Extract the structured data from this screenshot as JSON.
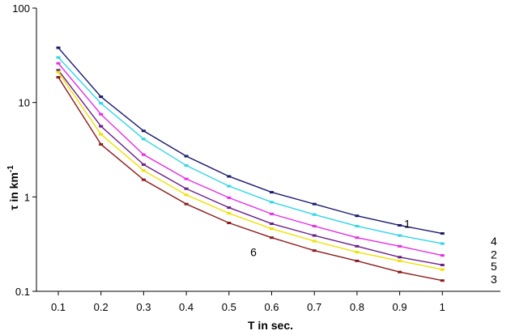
{
  "chart_data": {
    "type": "line",
    "title": "",
    "xlabel": "T in sec.",
    "ylabel_main": "τ in km",
    "ylabel_exp": "-1",
    "yscale": "log",
    "ylim": [
      0.1,
      100
    ],
    "xlim": [
      0.1,
      1.0
    ],
    "x_ticks": [
      "0.1",
      "0.2",
      "0.3",
      "0.4",
      "0.5",
      "0.6",
      "0.7",
      "0.8",
      "0.9",
      "1"
    ],
    "y_ticks": [
      "0.1",
      "1",
      "10",
      "100"
    ],
    "x": [
      0.1,
      0.2,
      0.3,
      0.4,
      0.5,
      0.6,
      0.7,
      0.8,
      0.9,
      1.0
    ],
    "grid": false,
    "legend": "none",
    "series": [
      {
        "name": "1",
        "color": "#1a1a6e",
        "values": [
          38,
          11.5,
          5.0,
          2.7,
          1.65,
          1.12,
          0.84,
          0.63,
          0.5,
          0.41
        ]
      },
      {
        "name": "4",
        "color": "#2ed6e6",
        "values": [
          30,
          9.8,
          4.1,
          2.15,
          1.3,
          0.88,
          0.65,
          0.49,
          0.39,
          0.32
        ]
      },
      {
        "name": "2",
        "color": "#e62ee6",
        "values": [
          26,
          7.5,
          2.8,
          1.55,
          0.98,
          0.66,
          0.49,
          0.37,
          0.3,
          0.24
        ]
      },
      {
        "name": "5",
        "color": "#6a1f8a",
        "values": [
          22,
          5.6,
          2.2,
          1.22,
          0.77,
          0.52,
          0.39,
          0.3,
          0.23,
          0.19
        ]
      },
      {
        "name": "",
        "color": "#f0e000",
        "values": [
          21,
          4.6,
          1.9,
          1.05,
          0.67,
          0.46,
          0.34,
          0.26,
          0.21,
          0.17
        ]
      },
      {
        "name": "3",
        "color": "#8b1a1a",
        "values": [
          18.5,
          3.6,
          1.52,
          0.84,
          0.53,
          0.37,
          0.27,
          0.21,
          0.16,
          0.13
        ]
      }
    ],
    "series_labels": [
      {
        "text": "1",
        "x": 0.92,
        "y": 0.52
      },
      {
        "text": "4",
        "x": 1.0,
        "y": 0.34
      },
      {
        "text": "2",
        "x": 1.0,
        "y": 0.245
      },
      {
        "text": "5",
        "x": 1.0,
        "y": 0.185
      },
      {
        "text": "3",
        "x": 1.0,
        "y": 0.135
      },
      {
        "text": "6",
        "x": 0.55,
        "y": 0.26
      }
    ]
  }
}
